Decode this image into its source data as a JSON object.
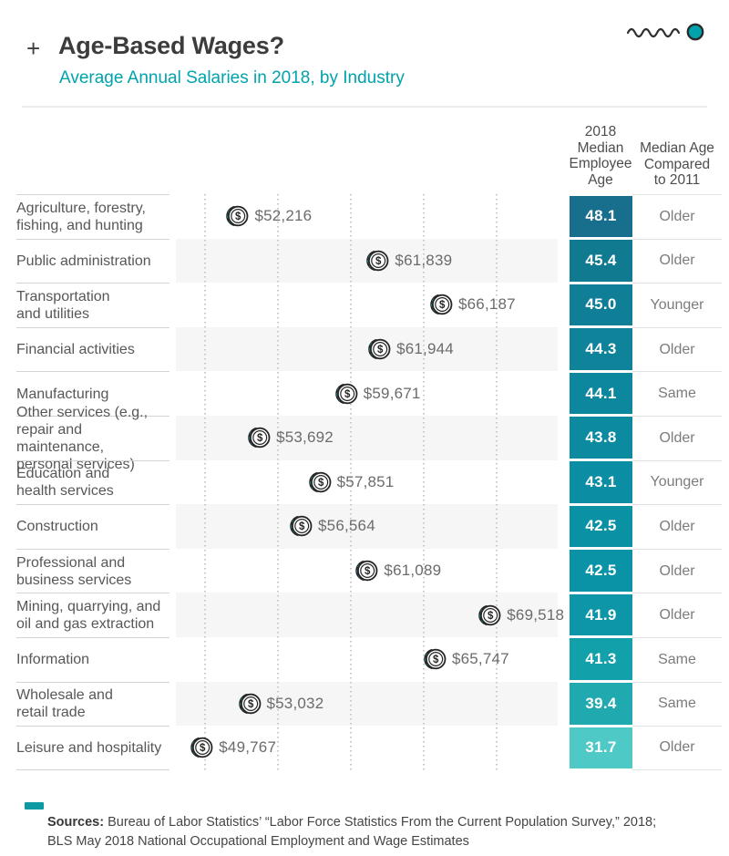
{
  "header": {
    "plus": "+",
    "title": "Age-Based Wages?",
    "subtitle": "Average Annual Salaries in 2018, by Industry"
  },
  "table": {
    "age_column_header": "2018\nMedian\nEmployee\nAge",
    "compare_column_header": "Median Age\nCompared\nto 2011"
  },
  "colors": {
    "accent_teal": "#00a3ac",
    "stripe": "#f6f6f6",
    "coin_teal": "#0ba7ab",
    "legend_dash": "#0d9aa2",
    "age_box_darkest": "#186f8d",
    "age_box_lightest": "#4fc9c5"
  },
  "chart_data": {
    "type": "scatter",
    "title": "Age-Based Wages?",
    "subtitle": "Average Annual Salaries in 2018, by Industry",
    "xlabel": "",
    "ylabel": "",
    "x_gridlines": [
      50000,
      55000,
      60000,
      65000,
      70000
    ],
    "x_range": [
      48000,
      72000
    ],
    "x_tick_labels_visible": false,
    "legend_position": "none",
    "rows": [
      {
        "industry": "Agriculture, forestry,\nfishing, and hunting",
        "salary": 52216,
        "salary_label": "$52,216",
        "age": 48.1,
        "age_label": "48.1",
        "vs_2011": "Older",
        "box_color": "#186f8d"
      },
      {
        "industry": "Public administration",
        "salary": 61839,
        "salary_label": "$61,839",
        "age": 45.4,
        "age_label": "45.4",
        "vs_2011": "Older",
        "box_color": "#107a91"
      },
      {
        "industry": "Transportation\nand utilities",
        "salary": 66187,
        "salary_label": "$66,187",
        "age": 45.0,
        "age_label": "45.0",
        "vs_2011": "Younger",
        "box_color": "#0e7f97"
      },
      {
        "industry": "Financial activities",
        "salary": 61944,
        "salary_label": "$61,944",
        "age": 44.3,
        "age_label": "44.3",
        "vs_2011": "Older",
        "box_color": "#0e839a"
      },
      {
        "industry": "Manufacturing",
        "salary": 59671,
        "salary_label": "$59,671",
        "age": 44.1,
        "age_label": "44.1",
        "vs_2011": "Same",
        "box_color": "#0d879d"
      },
      {
        "industry": "Other services (e.g.,\nrepair and maintenance,\npersonal services)",
        "salary": 53692,
        "salary_label": "$53,692",
        "age": 43.8,
        "age_label": "43.8",
        "vs_2011": "Older",
        "box_color": "#0c8aa0"
      },
      {
        "industry": "Education and\nhealth services",
        "salary": 57851,
        "salary_label": "$57,851",
        "age": 43.1,
        "age_label": "43.1",
        "vs_2011": "Younger",
        "box_color": "#0b8ea3"
      },
      {
        "industry": "Construction",
        "salary": 56564,
        "salary_label": "$56,564",
        "age": 42.5,
        "age_label": "42.5",
        "vs_2011": "Older",
        "box_color": "#0a91a4"
      },
      {
        "industry": "Professional and\nbusiness services",
        "salary": 61089,
        "salary_label": "$61,089",
        "age": 42.5,
        "age_label": "42.5",
        "vs_2011": "Older",
        "box_color": "#0a93a6"
      },
      {
        "industry": "Mining, quarrying, and\noil and gas extraction",
        "salary": 69518,
        "salary_label": "$69,518",
        "age": 41.9,
        "age_label": "41.9",
        "vs_2011": "Older",
        "box_color": "#0d96a7"
      },
      {
        "industry": "Information",
        "salary": 65747,
        "salary_label": "$65,747",
        "age": 41.3,
        "age_label": "41.3",
        "vs_2011": "Same",
        "box_color": "#12a0ab"
      },
      {
        "industry": "Wholesale and\nretail trade",
        "salary": 53032,
        "salary_label": "$53,032",
        "age": 39.4,
        "age_label": "39.4",
        "vs_2011": "Same",
        "box_color": "#20a9ae"
      },
      {
        "industry": "Leisure and hospitality",
        "salary": 49767,
        "salary_label": "$49,767",
        "age": 31.7,
        "age_label": "31.7",
        "vs_2011": "Older",
        "box_color": "#4fc9c5"
      }
    ]
  },
  "footer": {
    "sources_label": "Sources:",
    "sources_text": "Bureau of Labor Statistics’ “Labor Force Statistics From the Current Population Survey,” 2018;\nBLS May 2018 National Occupational Employment and Wage Estimates"
  }
}
